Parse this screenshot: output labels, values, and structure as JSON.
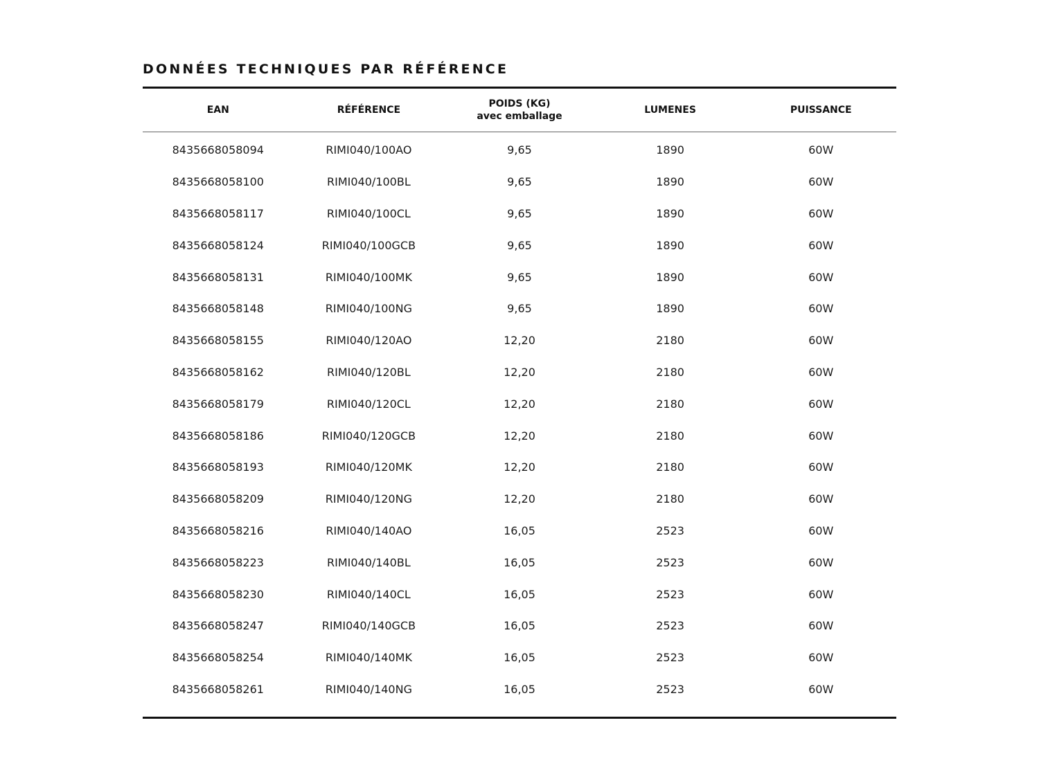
{
  "title": "DONNÉES TECHNIQUES PAR RÉFÉRENCE",
  "columns": [
    {
      "label": "EAN"
    },
    {
      "label": "RÉFÉRENCE"
    },
    {
      "label": "POIDS (KG)",
      "sub": "avec emballage"
    },
    {
      "label": "LUMENES"
    },
    {
      "label": "PUISSANCE"
    }
  ],
  "rows": [
    [
      "8435668058094",
      "RIMI040/100AO",
      "9,65",
      "1890",
      "60W"
    ],
    [
      "8435668058100",
      "RIMI040/100BL",
      "9,65",
      "1890",
      "60W"
    ],
    [
      "8435668058117",
      "RIMI040/100CL",
      "9,65",
      "1890",
      "60W"
    ],
    [
      "8435668058124",
      "RIMI040/100GCB",
      "9,65",
      "1890",
      "60W"
    ],
    [
      "8435668058131",
      "RIMI040/100MK",
      "9,65",
      "1890",
      "60W"
    ],
    [
      "8435668058148",
      "RIMI040/100NG",
      "9,65",
      "1890",
      "60W"
    ],
    [
      "8435668058155",
      "RIMI040/120AO",
      "12,20",
      "2180",
      "60W"
    ],
    [
      "8435668058162",
      "RIMI040/120BL",
      "12,20",
      "2180",
      "60W"
    ],
    [
      "8435668058179",
      "RIMI040/120CL",
      "12,20",
      "2180",
      "60W"
    ],
    [
      "8435668058186",
      "RIMI040/120GCB",
      "12,20",
      "2180",
      "60W"
    ],
    [
      "8435668058193",
      "RIMI040/120MK",
      "12,20",
      "2180",
      "60W"
    ],
    [
      "8435668058209",
      "RIMI040/120NG",
      "12,20",
      "2180",
      "60W"
    ],
    [
      "8435668058216",
      "RIMI040/140AO",
      "16,05",
      "2523",
      "60W"
    ],
    [
      "8435668058223",
      "RIMI040/140BL",
      "16,05",
      "2523",
      "60W"
    ],
    [
      "8435668058230",
      "RIMI040/140CL",
      "16,05",
      "2523",
      "60W"
    ],
    [
      "8435668058247",
      "RIMI040/140GCB",
      "16,05",
      "2523",
      "60W"
    ],
    [
      "8435668058254",
      "RIMI040/140MK",
      "16,05",
      "2523",
      "60W"
    ],
    [
      "8435668058261",
      "RIMI040/140NG",
      "16,05",
      "2523",
      "60W"
    ]
  ]
}
